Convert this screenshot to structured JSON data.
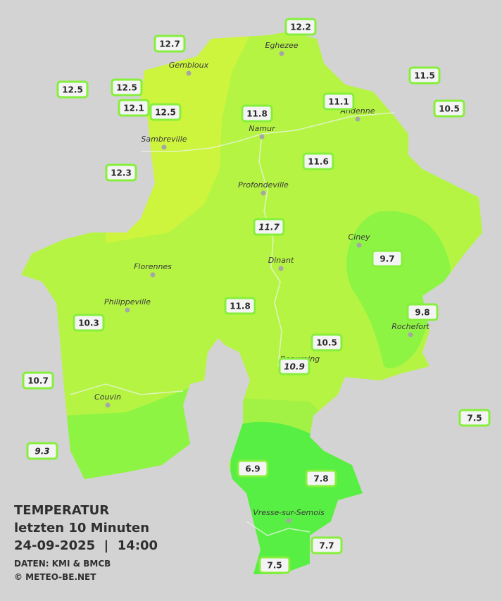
{
  "title": "TEMPERATUR",
  "subtitle": "letzten 10 Minuten",
  "datetime": "24-09-2025  |  14:00",
  "source": "DATEN: KMI & BMCB",
  "copyright": "© METEO-BE.NET",
  "cities": [
    "Eghezee",
    "Gembloux",
    "Andenne",
    "Namur",
    "Sambreville",
    "Profondeville",
    "Ciney",
    "Dinant",
    "Florennes",
    "Philippeville",
    "Rochefort",
    "Beauraing",
    "Couvin",
    "Vresse-sur-Semois"
  ],
  "stations": [
    "12.2",
    "12.7",
    "11.5",
    "12.5",
    "12.5",
    "12.1",
    "12.5",
    "11.1",
    "11.8",
    "10.5",
    "11.6",
    "12.3",
    "11.7",
    "9.7",
    "11.8",
    "9.8",
    "10.3",
    "10.5",
    "10.9",
    "10.7",
    "7.5",
    "9.3",
    "6.9",
    "7.8",
    "7.7",
    "7.5"
  ]
}
